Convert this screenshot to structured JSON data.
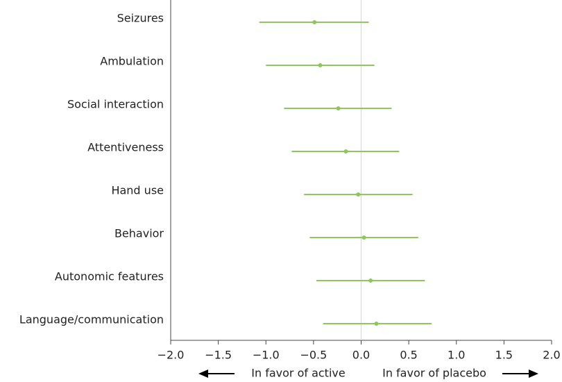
{
  "chart_data": {
    "type": "forest",
    "categories": [
      "Seizures",
      "Ambulation",
      "Social interaction",
      "Attentiveness",
      "Hand use",
      "Behavior",
      "Autonomic features",
      "Language/communication"
    ],
    "values": [
      -0.49,
      -0.43,
      -0.24,
      -0.16,
      -0.03,
      0.03,
      0.1,
      0.16
    ],
    "lower": [
      -1.07,
      -1.0,
      -0.81,
      -0.73,
      -0.6,
      -0.54,
      -0.47,
      -0.4
    ],
    "upper": [
      0.08,
      0.14,
      0.32,
      0.4,
      0.54,
      0.6,
      0.67,
      0.74
    ],
    "color": "#8cc85a",
    "xlim": [
      -2.0,
      2.0
    ],
    "xticks": [
      {
        "value": -2.0,
        "label": "−2.0"
      },
      {
        "value": -1.5,
        "label": "−1.5"
      },
      {
        "value": -1.0,
        "label": "−1.0"
      },
      {
        "value": -0.5,
        "label": "−0.5"
      },
      {
        "value": 0,
        "label": "0.0"
      },
      0.5,
      {
        "value": 1.0,
        "label": "1.0"
      },
      1.5,
      {
        "value": 2.0,
        "label": "2.0"
      }
    ],
    "reference_line": 0,
    "annotations": [
      "In favor of active",
      "In favor of placebo"
    ]
  }
}
